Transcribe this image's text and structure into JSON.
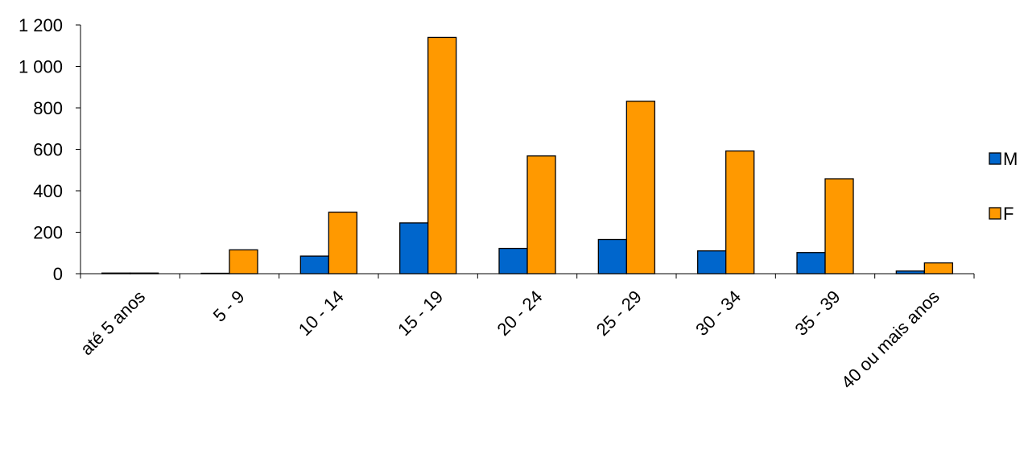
{
  "chart_data": {
    "type": "bar",
    "title": "",
    "xlabel": "",
    "ylabel": "",
    "ylim": [
      0,
      1200
    ],
    "yticks": [
      0,
      200,
      400,
      600,
      800,
      1000,
      1200
    ],
    "ytick_labels": [
      "0",
      "200",
      "400",
      "600",
      "800",
      "1 000",
      "1 200"
    ],
    "categories": [
      "até 5 anos",
      "5 - 9",
      "10 - 14",
      "15 - 19",
      "20 - 24",
      "25 - 29",
      "30 - 34",
      "35 - 39",
      "40 ou mais anos"
    ],
    "series": [
      {
        "name": "M",
        "color": "#0066CC",
        "values": [
          3,
          2,
          85,
          245,
          122,
          165,
          110,
          102,
          13
        ]
      },
      {
        "name": "F",
        "color": "#FF9900",
        "values": [
          3,
          115,
          297,
          1140,
          568,
          832,
          592,
          458,
          52
        ]
      }
    ],
    "grid": false,
    "legend_position": "right"
  }
}
